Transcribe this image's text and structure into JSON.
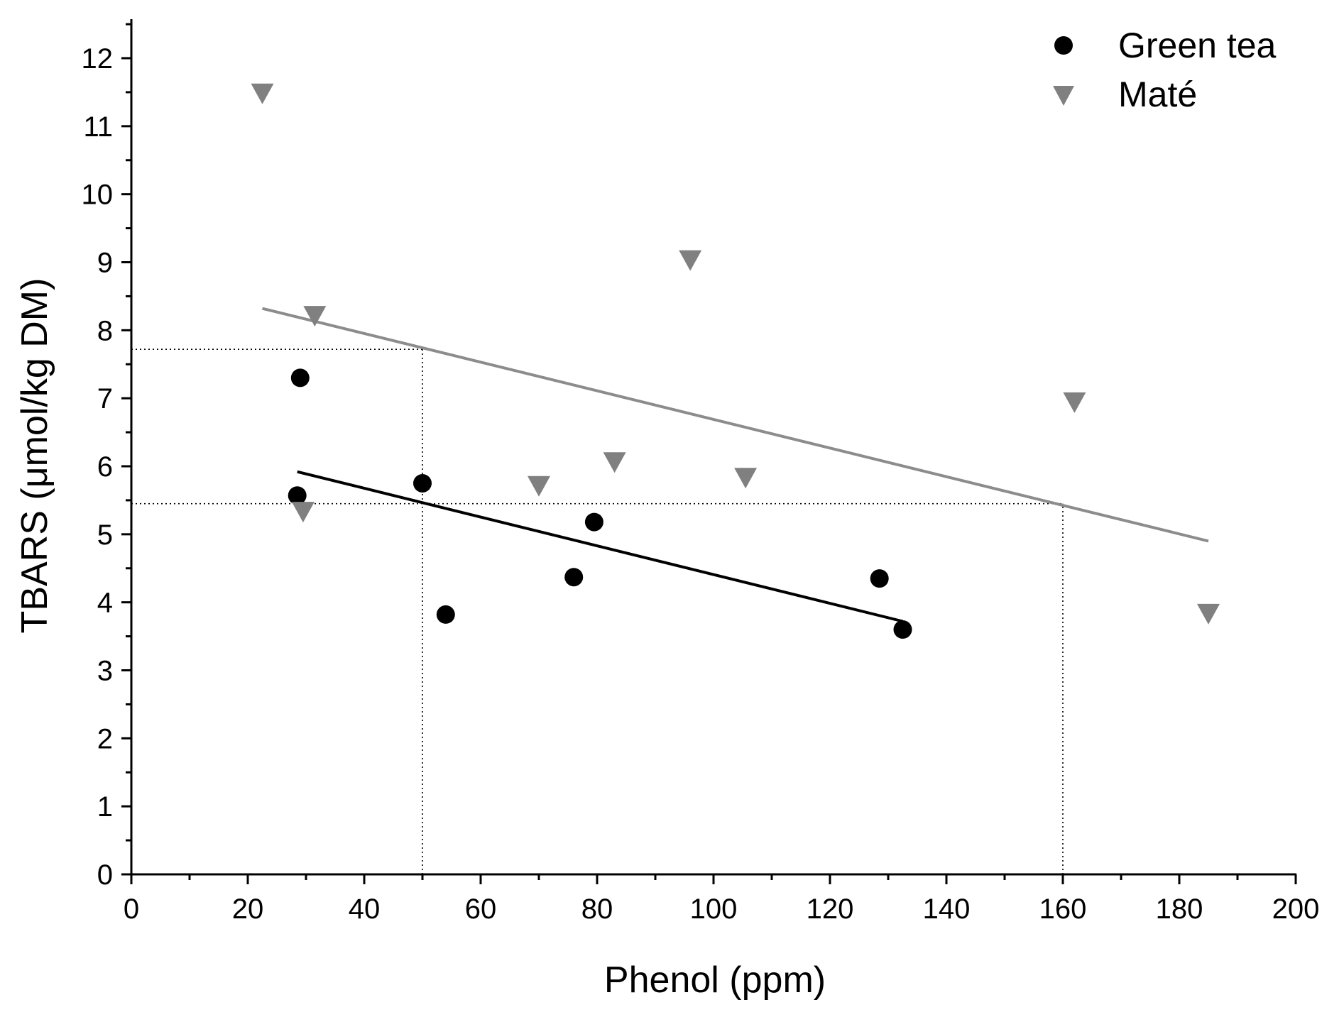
{
  "chart_data": {
    "type": "scatter",
    "title": "",
    "xlabel": "Phenol (ppm)",
    "ylabel": "TBARS (μmol/kg DM)",
    "xlim": [
      0,
      200
    ],
    "ylim": [
      0,
      12.5
    ],
    "xticks": [
      0,
      20,
      40,
      60,
      80,
      100,
      120,
      140,
      160,
      180,
      200
    ],
    "yticks": [
      0,
      1,
      2,
      3,
      4,
      5,
      6,
      7,
      8,
      9,
      10,
      11,
      12
    ],
    "xtick_labels": [
      "0",
      "20",
      "40",
      "60",
      "80",
      "100",
      "120",
      "140",
      "160",
      "180",
      "200"
    ],
    "ytick_labels": [
      "0",
      "1",
      "2",
      "3",
      "4",
      "5",
      "6",
      "7",
      "8",
      "9",
      "10",
      "11",
      "12"
    ],
    "legend_position": "top-right",
    "series": [
      {
        "name": "Green tea",
        "marker": "circle",
        "color": "#000000",
        "points": [
          {
            "x": 29,
            "y": 7.3
          },
          {
            "x": 28.5,
            "y": 5.57
          },
          {
            "x": 50,
            "y": 5.75
          },
          {
            "x": 54,
            "y": 3.82
          },
          {
            "x": 76,
            "y": 4.37
          },
          {
            "x": 79.5,
            "y": 5.18
          },
          {
            "x": 128.5,
            "y": 4.35
          },
          {
            "x": 132.5,
            "y": 3.6
          }
        ],
        "fit": {
          "x": [
            28.5,
            132.5
          ],
          "y": [
            5.92,
            3.72
          ]
        }
      },
      {
        "name": "Maté",
        "marker": "triangle-down",
        "color": "#808080",
        "points": [
          {
            "x": 22.5,
            "y": 11.47
          },
          {
            "x": 31.5,
            "y": 8.2
          },
          {
            "x": 29.5,
            "y": 5.32
          },
          {
            "x": 70,
            "y": 5.7
          },
          {
            "x": 83,
            "y": 6.05
          },
          {
            "x": 96,
            "y": 9.02
          },
          {
            "x": 105.5,
            "y": 5.82
          },
          {
            "x": 162,
            "y": 6.93
          },
          {
            "x": 185,
            "y": 3.82
          }
        ],
        "fit": {
          "x": [
            22.5,
            185
          ],
          "y": [
            8.32,
            4.9
          ]
        }
      }
    ],
    "reference_lines": [
      {
        "orientation": "horizontal",
        "y": 7.72,
        "x_from": 0,
        "x_to": 50
      },
      {
        "orientation": "vertical",
        "x": 50,
        "y_from": 0,
        "y_to": 7.72
      },
      {
        "orientation": "horizontal",
        "y": 5.45,
        "x_from": 0,
        "x_to": 160
      },
      {
        "orientation": "vertical",
        "x": 160,
        "y_from": 0,
        "y_to": 5.45
      }
    ]
  }
}
